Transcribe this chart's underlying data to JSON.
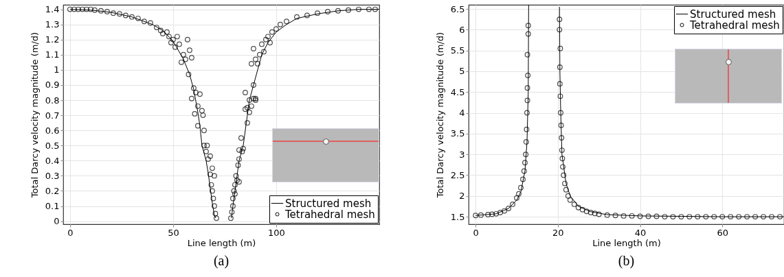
{
  "chart_data": [
    {
      "type": "line",
      "xlabel": "Line length (m)",
      "ylabel": "Total Darcy velocity magnitude (m/d)",
      "annotations": [
        "(a)"
      ],
      "xlim": [
        -3.3,
        150
      ],
      "ylim": [
        -0.02,
        1.43
      ],
      "xticks": [
        0,
        50,
        100
      ],
      "yticks": [
        0,
        0.1,
        0.2,
        0.3,
        0.4,
        0.5,
        0.6,
        0.7,
        0.8,
        0.9,
        1,
        1.1,
        1.2,
        1.3,
        1.4
      ],
      "grid": true,
      "legend": "bottom right",
      "series": [
        {
          "name": "Structured mesh",
          "type": "line",
          "color": "#000000",
          "line_style": "solid",
          "x": [
            0,
            10,
            20,
            30,
            40,
            45,
            50,
            55,
            58,
            60,
            62,
            63,
            64,
            66,
            67,
            68,
            69,
            70,
            70.7,
            74,
            78.3,
            79,
            80,
            81,
            82,
            84,
            85,
            86,
            87,
            89,
            91,
            93,
            96,
            100,
            105,
            110,
            120,
            130,
            140,
            150
          ],
          "values": [
            1.4,
            1.395,
            1.38,
            1.35,
            1.3,
            1.26,
            1.19,
            1.07,
            0.97,
            0.87,
            0.72,
            0.63,
            0.5,
            0.4,
            0.32,
            0.22,
            0.12,
            0.04,
            0.02,
            null,
            0.02,
            0.1,
            0.2,
            0.3,
            0.4,
            0.5,
            0.6,
            0.7,
            0.8,
            0.9,
            1.0,
            1.1,
            1.18,
            1.25,
            1.3,
            1.34,
            1.37,
            1.39,
            1.4,
            1.4
          ]
        },
        {
          "name": "Tetrahedral mesh",
          "type": "scatter",
          "marker": "circle",
          "color": "#000000",
          "x": [
            0,
            2,
            4,
            6,
            8,
            10,
            12,
            15,
            18,
            21,
            24,
            27,
            30,
            33,
            36,
            39,
            42,
            44,
            45,
            47,
            48,
            49,
            50,
            51,
            52,
            53,
            54,
            55,
            56,
            57,
            58,
            57.5,
            59,
            60,
            61,
            59,
            60.5,
            62,
            63,
            62,
            64,
            64.5,
            65,
            65,
            66,
            66.5,
            67,
            68,
            68,
            69,
            68.5,
            69,
            69.5,
            70,
            70.5,
            71,
            70,
            78,
            78.5,
            79,
            79,
            79.5,
            80,
            80.5,
            81,
            82,
            80,
            81.5,
            82,
            82,
            83,
            83.5,
            84,
            85,
            85,
            86,
            86,
            87,
            87,
            88,
            89,
            90,
            89,
            90,
            88,
            89,
            90,
            91,
            92,
            93,
            94,
            95,
            96,
            97,
            98,
            100,
            102,
            105,
            110,
            115,
            120,
            125,
            130,
            135,
            140,
            145,
            148
          ],
          "values": [
            1.4,
            1.4,
            1.4,
            1.4,
            1.4,
            1.4,
            1.395,
            1.39,
            1.385,
            1.375,
            1.37,
            1.36,
            1.35,
            1.34,
            1.32,
            1.31,
            1.28,
            1.26,
            1.24,
            1.25,
            1.22,
            1.18,
            1.2,
            1.15,
            1.22,
            1.17,
            1.05,
            1.1,
            1.07,
            1.2,
            1.13,
            0.97,
            1.08,
            0.88,
            0.85,
            0.81,
            0.71,
            0.76,
            0.84,
            0.63,
            0.73,
            0.7,
            0.6,
            0.5,
            0.46,
            0.5,
            0.41,
            0.43,
            0.31,
            0.35,
            0.24,
            0.2,
            0.15,
            0.1,
            0.05,
            0.02,
            0.3,
            0.02,
            0.06,
            0.1,
            0.15,
            0.2,
            0.24,
            0.3,
            0.27,
            0.26,
            0.18,
            0.37,
            0.41,
            0.47,
            0.55,
            0.46,
            0.48,
            0.74,
            0.85,
            0.65,
            0.75,
            0.72,
            0.8,
            0.76,
            0.81,
            0.8,
            0.9,
            0.81,
            1.04,
            1.14,
            1.07,
            1.04,
            1.1,
            1.17,
            1.12,
            1.2,
            1.22,
            1.18,
            1.25,
            1.27,
            1.3,
            1.32,
            1.35,
            1.36,
            1.375,
            1.385,
            1.39,
            1.395,
            1.4,
            1.4,
            1.4
          ]
        }
      ]
    },
    {
      "type": "line",
      "xlabel": "Line length (m)",
      "ylabel": "Total Darcy velocity magnitude (m/d)",
      "annotations": [
        "(b)"
      ],
      "xlim": [
        -1.7,
        75
      ],
      "ylim": [
        1.32,
        6.6
      ],
      "xticks": [
        0,
        20,
        40,
        60
      ],
      "yticks": [
        1.5,
        2,
        2.5,
        3,
        3.5,
        4,
        4.5,
        5,
        5.5,
        6,
        6.5
      ],
      "grid": true,
      "legend": "top right",
      "series": [
        {
          "name": "Structured mesh",
          "type": "line",
          "color": "#000000",
          "line_style": "solid",
          "x": [
            0,
            5,
            8,
            10,
            11,
            12,
            12.5,
            12.8,
            12.9,
            16,
            20.4,
            20.5,
            20.7,
            21,
            22,
            23,
            25,
            28,
            32,
            40,
            50,
            60,
            75
          ],
          "values": [
            1.53,
            1.57,
            1.7,
            1.9,
            2.1,
            2.6,
            3.3,
            4.5,
            6.6,
            null,
            6.55,
            5.0,
            4.0,
            3.0,
            2.3,
            2.0,
            1.75,
            1.62,
            1.55,
            1.52,
            1.51,
            1.5,
            1.5
          ]
        },
        {
          "name": "Tetrahedral mesh",
          "type": "scatter",
          "marker": "circle",
          "color": "#000000",
          "x": [
            0,
            1.3,
            3,
            4,
            5,
            6,
            7,
            8,
            9,
            10,
            10.5,
            11,
            11.5,
            11.8,
            12,
            12.2,
            12.3,
            12.4,
            12.5,
            12.6,
            12.6,
            12.7,
            12.6,
            12.8,
            12.8,
            20.4,
            20.4,
            20.6,
            20.5,
            20.5,
            20.6,
            20.7,
            20.8,
            20.9,
            21,
            21.1,
            21.2,
            21.4,
            21.7,
            22,
            22.5,
            23,
            24,
            25,
            26,
            27,
            28,
            29,
            30,
            32,
            34,
            36,
            38,
            40,
            42,
            44,
            46,
            48,
            50,
            52,
            54,
            56,
            58,
            60,
            62,
            64,
            66,
            68,
            70,
            72,
            74
          ],
          "values": [
            1.53,
            1.54,
            1.55,
            1.56,
            1.57,
            1.6,
            1.64,
            1.7,
            1.8,
            1.95,
            2.05,
            2.2,
            2.4,
            2.6,
            2.8,
            3.0,
            3.3,
            3.6,
            4.0,
            4.3,
            4.6,
            4.9,
            5.4,
            5.9,
            6.1,
            6.25,
            6.0,
            5.55,
            5.1,
            4.7,
            4.4,
            4.0,
            3.7,
            3.4,
            3.1,
            2.9,
            2.7,
            2.5,
            2.3,
            2.15,
            2.0,
            1.9,
            1.8,
            1.72,
            1.67,
            1.63,
            1.6,
            1.58,
            1.56,
            1.54,
            1.53,
            1.52,
            1.52,
            1.51,
            1.51,
            1.51,
            1.5,
            1.5,
            1.5,
            1.5,
            1.5,
            1.5,
            1.5,
            1.5,
            1.5,
            1.5,
            1.5,
            1.5,
            1.5,
            1.5,
            1.5
          ]
        }
      ]
    }
  ]
}
